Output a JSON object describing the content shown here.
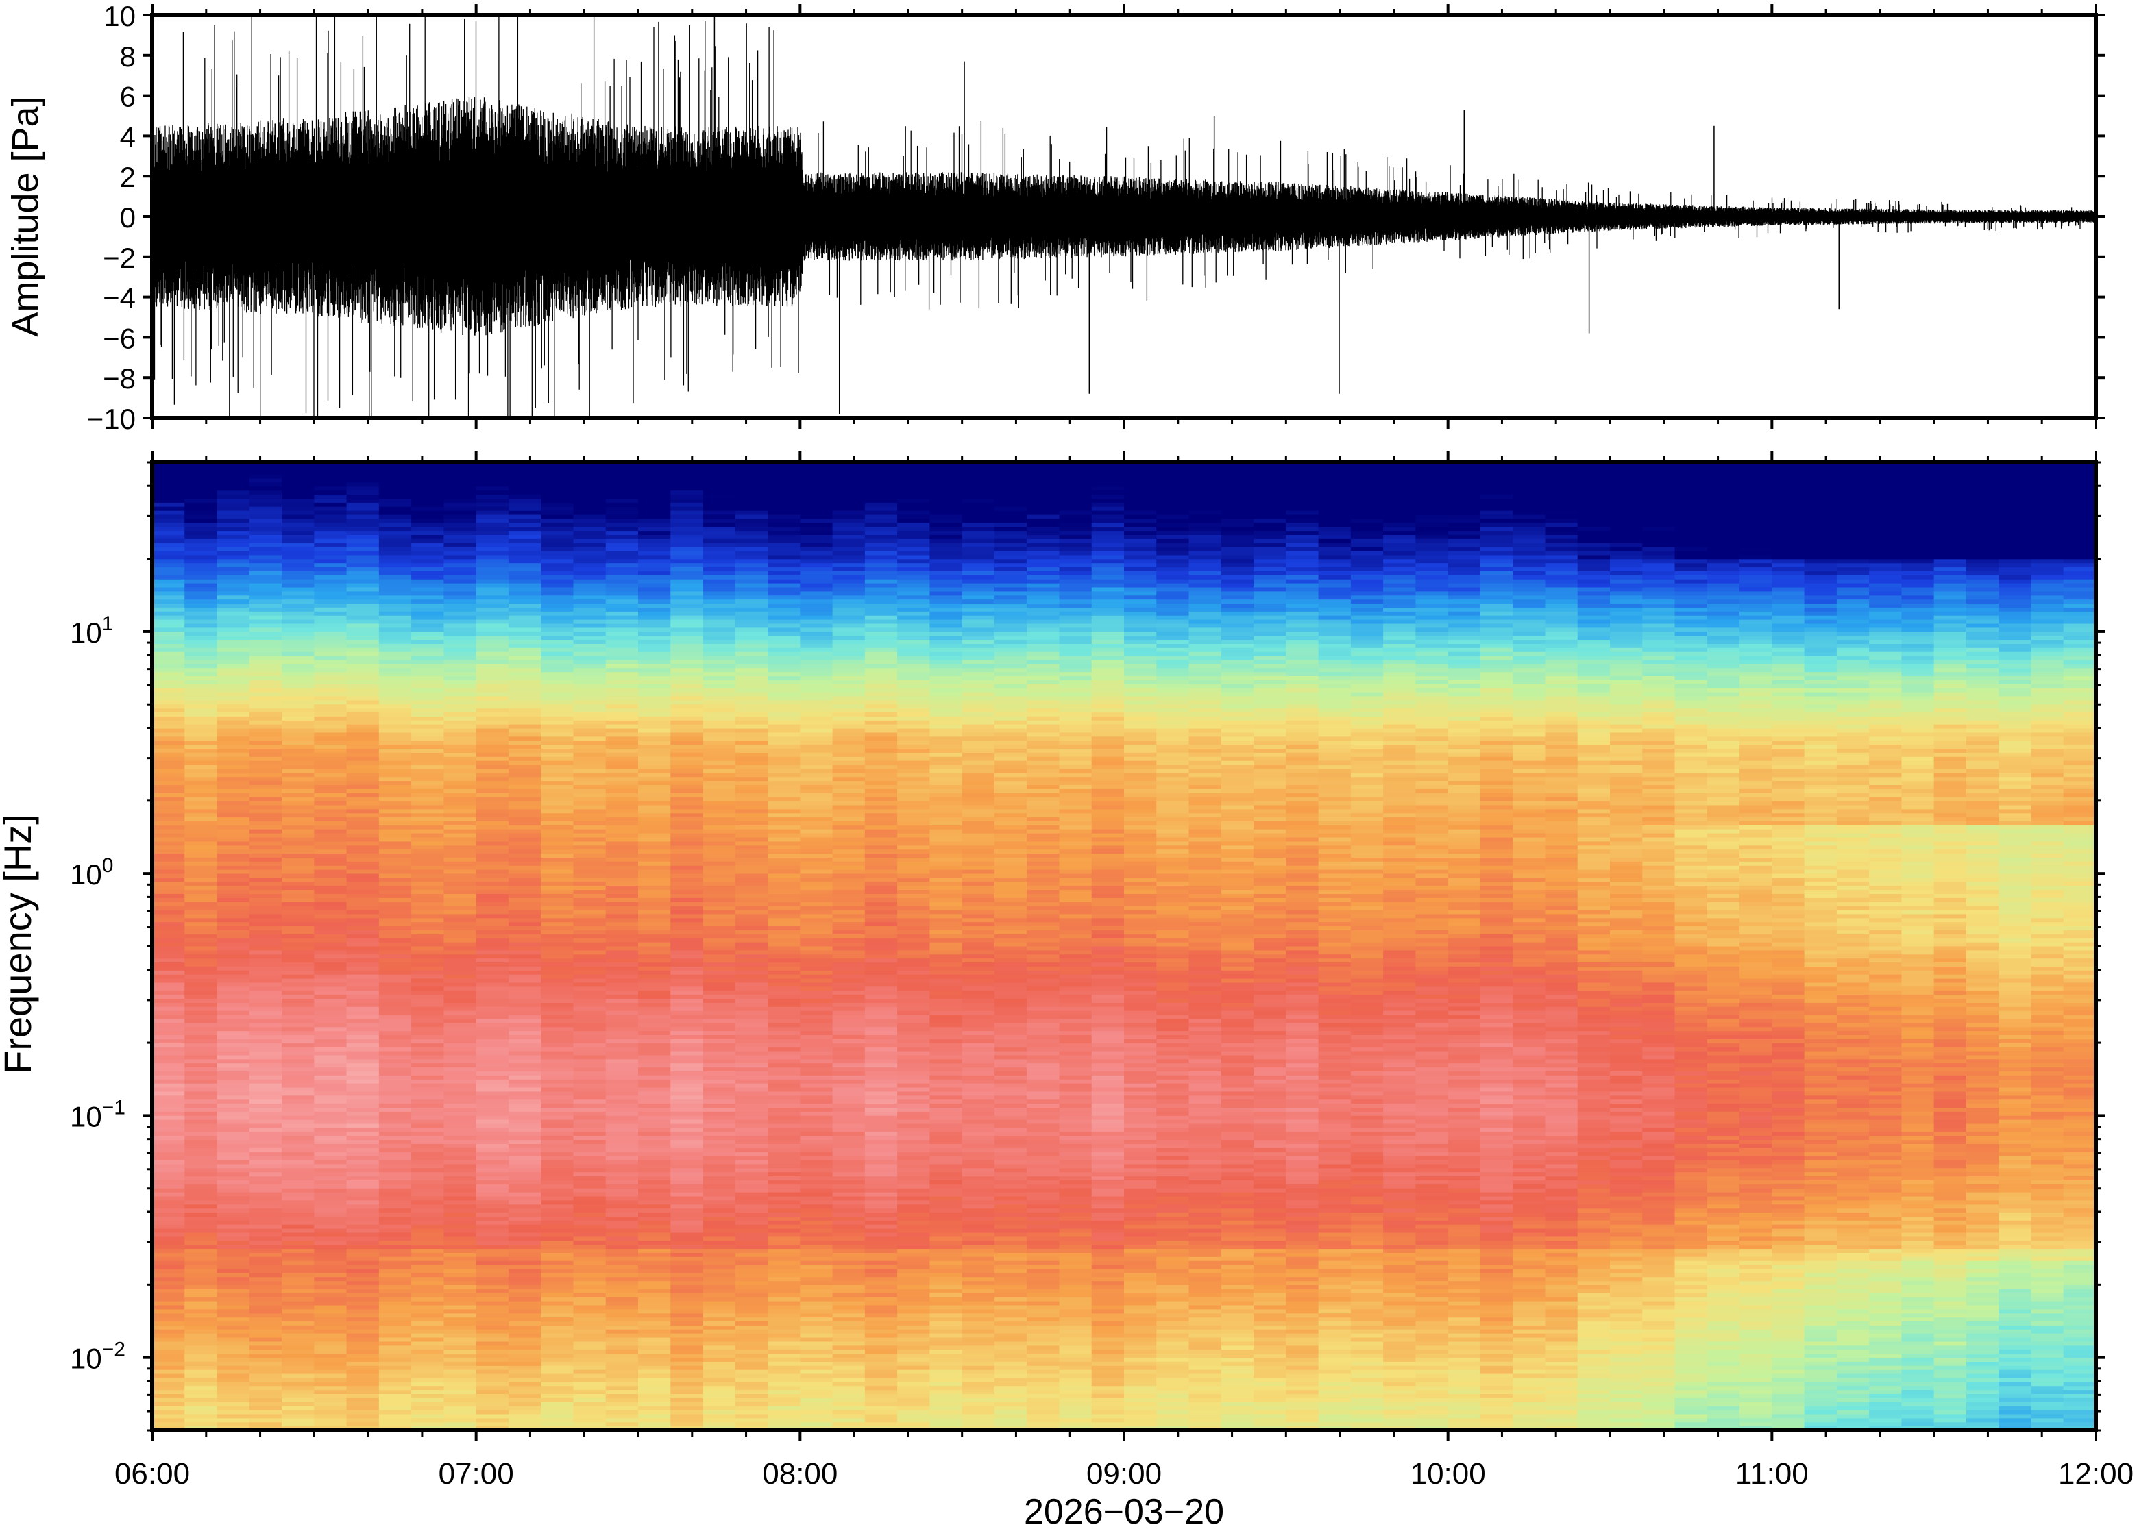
{
  "chart_data": [
    {
      "type": "line",
      "ylabel": "Amplitude [Pa]",
      "ylim": [
        -10,
        10
      ],
      "yticks": [
        10,
        8,
        6,
        4,
        2,
        0,
        -2,
        -4,
        -6,
        -8,
        -10
      ],
      "ytick_labels": [
        "10",
        "8",
        "6",
        "4",
        "2",
        "0",
        "−2",
        "−4",
        "−6",
        "−8",
        "−10"
      ],
      "x_range": [
        "06:00",
        "12:00"
      ],
      "envelope": {
        "x_hours": [
          6.0,
          6.5,
          7.0,
          7.5,
          8.0,
          8.01,
          8.5,
          9.0,
          9.5,
          10.0,
          10.5,
          11.0,
          11.5,
          12.0
        ],
        "amplitude_pa": [
          4.5,
          5.0,
          6.0,
          4.5,
          4.5,
          2.2,
          2.2,
          2.0,
          1.7,
          1.2,
          0.7,
          0.45,
          0.35,
          0.3
        ]
      },
      "peak_excursions_pa": [
        9.5,
        -9.5,
        9.8,
        -9.9,
        9.9,
        -9.8,
        7.7,
        -8.8,
        5.0,
        -8.8,
        5.3,
        -5.8,
        4.5,
        -4.6
      ]
    },
    {
      "type": "heatmap",
      "ylabel": "Frequency [Hz]",
      "yscale": "log",
      "ylim": [
        0.005,
        50
      ],
      "yticks": [
        0.01,
        0.1,
        1,
        10
      ],
      "ytick_labels": [
        {
          "base": "10",
          "exp": "−2"
        },
        {
          "base": "10",
          "exp": "−1"
        },
        {
          "base": "10",
          "exp": "0"
        },
        {
          "base": "10",
          "exp": "1"
        }
      ],
      "x_range": [
        "06:00",
        "12:00"
      ],
      "colormap": [
        "#00007a",
        "#1a40e0",
        "#2aa4ee",
        "#72e6dd",
        "#c6f29c",
        "#f5e07a",
        "#f7a04a",
        "#ee6350",
        "#f58c8c",
        "#fbc6c6"
      ],
      "description": "relative power; pinkish-red (highest) below 1 Hz in early hours, blue/navy near 50 Hz, power decreasing after 10:30"
    }
  ],
  "xaxis": {
    "tick_labels": [
      "06:00",
      "07:00",
      "08:00",
      "09:00",
      "10:00",
      "11:00",
      "12:00"
    ],
    "date_label": "2026−03−20"
  }
}
